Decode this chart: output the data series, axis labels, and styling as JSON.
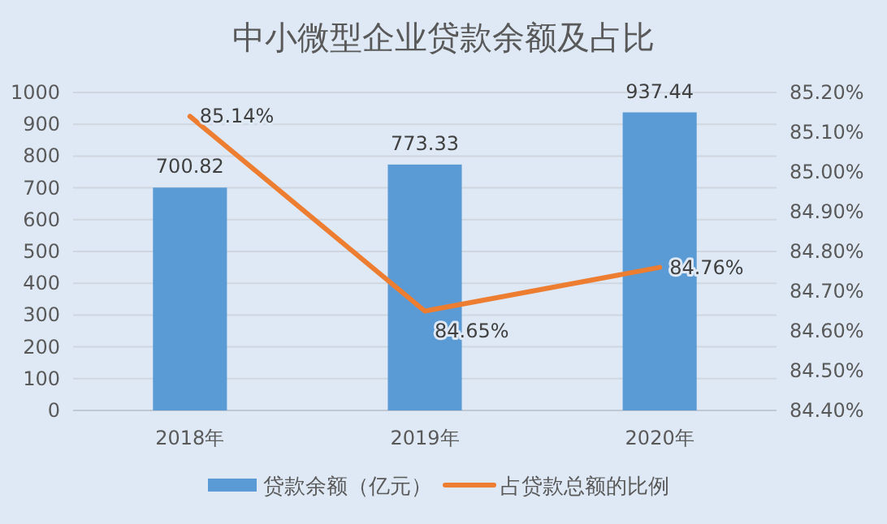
{
  "chart_data": {
    "type": "bar",
    "title": "中小微型企业贷款余额及占比",
    "categories": [
      "2018年",
      "2019年",
      "2020年"
    ],
    "series": [
      {
        "name": "贷款余额（亿元）",
        "color": "#5b9bd5",
        "values": [
          700.82,
          773.33,
          937.44
        ],
        "value_labels": [
          "700.82",
          "773.33",
          "937.44"
        ]
      },
      {
        "name": "占贷款总额的比例",
        "type": "line",
        "axis": "y2",
        "color": "#ed7d31",
        "values": [
          85.14,
          84.65,
          84.76
        ],
        "value_labels": [
          "85.14%",
          "84.65%",
          "84.76%"
        ]
      }
    ],
    "ylim": [
      0,
      1000
    ],
    "yticks": [
      0,
      100,
      200,
      300,
      400,
      500,
      600,
      700,
      800,
      900,
      1000
    ],
    "y2lim": [
      84.4,
      85.2
    ],
    "y2ticks": [
      {
        "value": 84.4,
        "label": "84.40%"
      },
      {
        "value": 84.5,
        "label": "84.50%"
      },
      {
        "value": 84.6,
        "label": "84.60%"
      },
      {
        "value": 84.7,
        "label": "84.70%"
      },
      {
        "value": 84.8,
        "label": "84.80%"
      },
      {
        "value": 84.9,
        "label": "84.90%"
      },
      {
        "value": 85.0,
        "label": "85.00%"
      },
      {
        "value": 85.1,
        "label": "85.10%"
      },
      {
        "value": 85.2,
        "label": "85.20%"
      }
    ],
    "grid": "y",
    "legend": "bottom",
    "marker": "none",
    "line_style": "solid"
  }
}
